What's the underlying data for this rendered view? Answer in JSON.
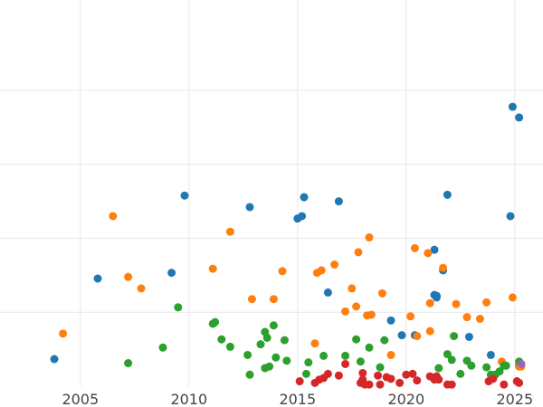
{
  "chart_data": {
    "type": "scatter",
    "title": "",
    "xlabel": "",
    "ylabel": "",
    "xlim": [
      2001.3,
      2026.3
    ],
    "ylim": [
      0,
      470
    ],
    "grid": true,
    "x_ticks": [
      2005,
      2010,
      2015,
      2020,
      2025
    ],
    "y_gridlines": [
      90,
      180,
      270,
      360
    ],
    "series": [
      {
        "color": "#1f77b4",
        "points": [
          [
            2003.8,
            33
          ],
          [
            2005.8,
            131
          ],
          [
            2009.2,
            138
          ],
          [
            2009.8,
            232
          ],
          [
            2012.8,
            218
          ],
          [
            2015.0,
            204
          ],
          [
            2015.2,
            207
          ],
          [
            2015.3,
            230
          ],
          [
            2016.4,
            114
          ],
          [
            2016.9,
            225
          ],
          [
            2019.3,
            80
          ],
          [
            2019.8,
            62
          ],
          [
            2020.4,
            62
          ],
          [
            2021.3,
            166
          ],
          [
            2021.3,
            111
          ],
          [
            2021.4,
            108
          ],
          [
            2021.4,
            110
          ],
          [
            2021.7,
            141
          ],
          [
            2021.9,
            233
          ],
          [
            2022.9,
            60
          ],
          [
            2023.9,
            38
          ],
          [
            2024.8,
            207
          ],
          [
            2024.9,
            340
          ],
          [
            2025.2,
            327
          ],
          [
            2025.2,
            25
          ]
        ]
      },
      {
        "color": "#ff7f0e",
        "points": [
          [
            2004.2,
            64
          ],
          [
            2006.5,
            207
          ],
          [
            2007.2,
            133
          ],
          [
            2007.8,
            119
          ],
          [
            2011.1,
            143
          ],
          [
            2011.9,
            188
          ],
          [
            2012.9,
            106
          ],
          [
            2013.9,
            106
          ],
          [
            2014.3,
            140
          ],
          [
            2015.8,
            52
          ],
          [
            2015.9,
            138
          ],
          [
            2016.1,
            141
          ],
          [
            2016.7,
            148
          ],
          [
            2017.2,
            91
          ],
          [
            2017.5,
            119
          ],
          [
            2017.7,
            97
          ],
          [
            2017.8,
            163
          ],
          [
            2018.2,
            86
          ],
          [
            2018.3,
            181
          ],
          [
            2018.4,
            87
          ],
          [
            2018.9,
            113
          ],
          [
            2019.3,
            38
          ],
          [
            2020.2,
            85
          ],
          [
            2020.4,
            168
          ],
          [
            2020.5,
            61
          ],
          [
            2021.0,
            162
          ],
          [
            2021.1,
            67
          ],
          [
            2021.1,
            101
          ],
          [
            2021.7,
            144
          ],
          [
            2022.3,
            100
          ],
          [
            2022.8,
            84
          ],
          [
            2023.4,
            82
          ],
          [
            2023.7,
            102
          ],
          [
            2024.4,
            30
          ],
          [
            2024.9,
            108
          ],
          [
            2025.2,
            24
          ],
          [
            2025.3,
            24
          ]
        ]
      },
      {
        "color": "#2ca02c",
        "points": [
          [
            2007.2,
            28
          ],
          [
            2008.8,
            47
          ],
          [
            2009.5,
            96
          ],
          [
            2011.1,
            76
          ],
          [
            2011.2,
            78
          ],
          [
            2011.5,
            57
          ],
          [
            2011.9,
            48
          ],
          [
            2012.7,
            38
          ],
          [
            2012.8,
            14
          ],
          [
            2013.3,
            51
          ],
          [
            2013.5,
            22
          ],
          [
            2013.5,
            66
          ],
          [
            2013.6,
            59
          ],
          [
            2013.7,
            24
          ],
          [
            2013.9,
            74
          ],
          [
            2014.0,
            35
          ],
          [
            2014.4,
            56
          ],
          [
            2014.5,
            31
          ],
          [
            2015.4,
            15
          ],
          [
            2015.5,
            29
          ],
          [
            2016.2,
            37
          ],
          [
            2017.2,
            37
          ],
          [
            2017.7,
            57
          ],
          [
            2017.9,
            30
          ],
          [
            2018.3,
            47
          ],
          [
            2018.8,
            23
          ],
          [
            2019.0,
            56
          ],
          [
            2021.5,
            22
          ],
          [
            2021.9,
            39
          ],
          [
            2022.1,
            32
          ],
          [
            2022.2,
            61
          ],
          [
            2022.5,
            15
          ],
          [
            2022.8,
            31
          ],
          [
            2023.0,
            25
          ],
          [
            2023.7,
            23
          ],
          [
            2023.9,
            14
          ],
          [
            2024.1,
            14
          ],
          [
            2024.3,
            18
          ],
          [
            2024.5,
            25
          ],
          [
            2024.6,
            25
          ],
          [
            2025.2,
            30
          ]
        ]
      },
      {
        "color": "#d62728",
        "points": [
          [
            2015.1,
            6
          ],
          [
            2015.8,
            4
          ],
          [
            2016.0,
            8
          ],
          [
            2016.2,
            10
          ],
          [
            2016.4,
            15
          ],
          [
            2016.9,
            13
          ],
          [
            2017.2,
            27
          ],
          [
            2017.9,
            4
          ],
          [
            2018.0,
            16
          ],
          [
            2018.0,
            8
          ],
          [
            2018.1,
            2
          ],
          [
            2018.3,
            2
          ],
          [
            2018.7,
            13
          ],
          [
            2018.8,
            2
          ],
          [
            2019.1,
            11
          ],
          [
            2019.3,
            9
          ],
          [
            2019.7,
            4
          ],
          [
            2020.0,
            14
          ],
          [
            2020.3,
            15
          ],
          [
            2020.5,
            7
          ],
          [
            2021.1,
            12
          ],
          [
            2021.3,
            8
          ],
          [
            2021.4,
            12
          ],
          [
            2021.5,
            8
          ],
          [
            2021.9,
            2
          ],
          [
            2022.1,
            2
          ],
          [
            2023.8,
            6
          ],
          [
            2024.0,
            9
          ],
          [
            2024.5,
            2
          ],
          [
            2025.1,
            6
          ],
          [
            2025.2,
            4
          ]
        ]
      },
      {
        "color": "#9467bd",
        "points": [
          [
            2025.3,
            27
          ]
        ]
      }
    ]
  }
}
